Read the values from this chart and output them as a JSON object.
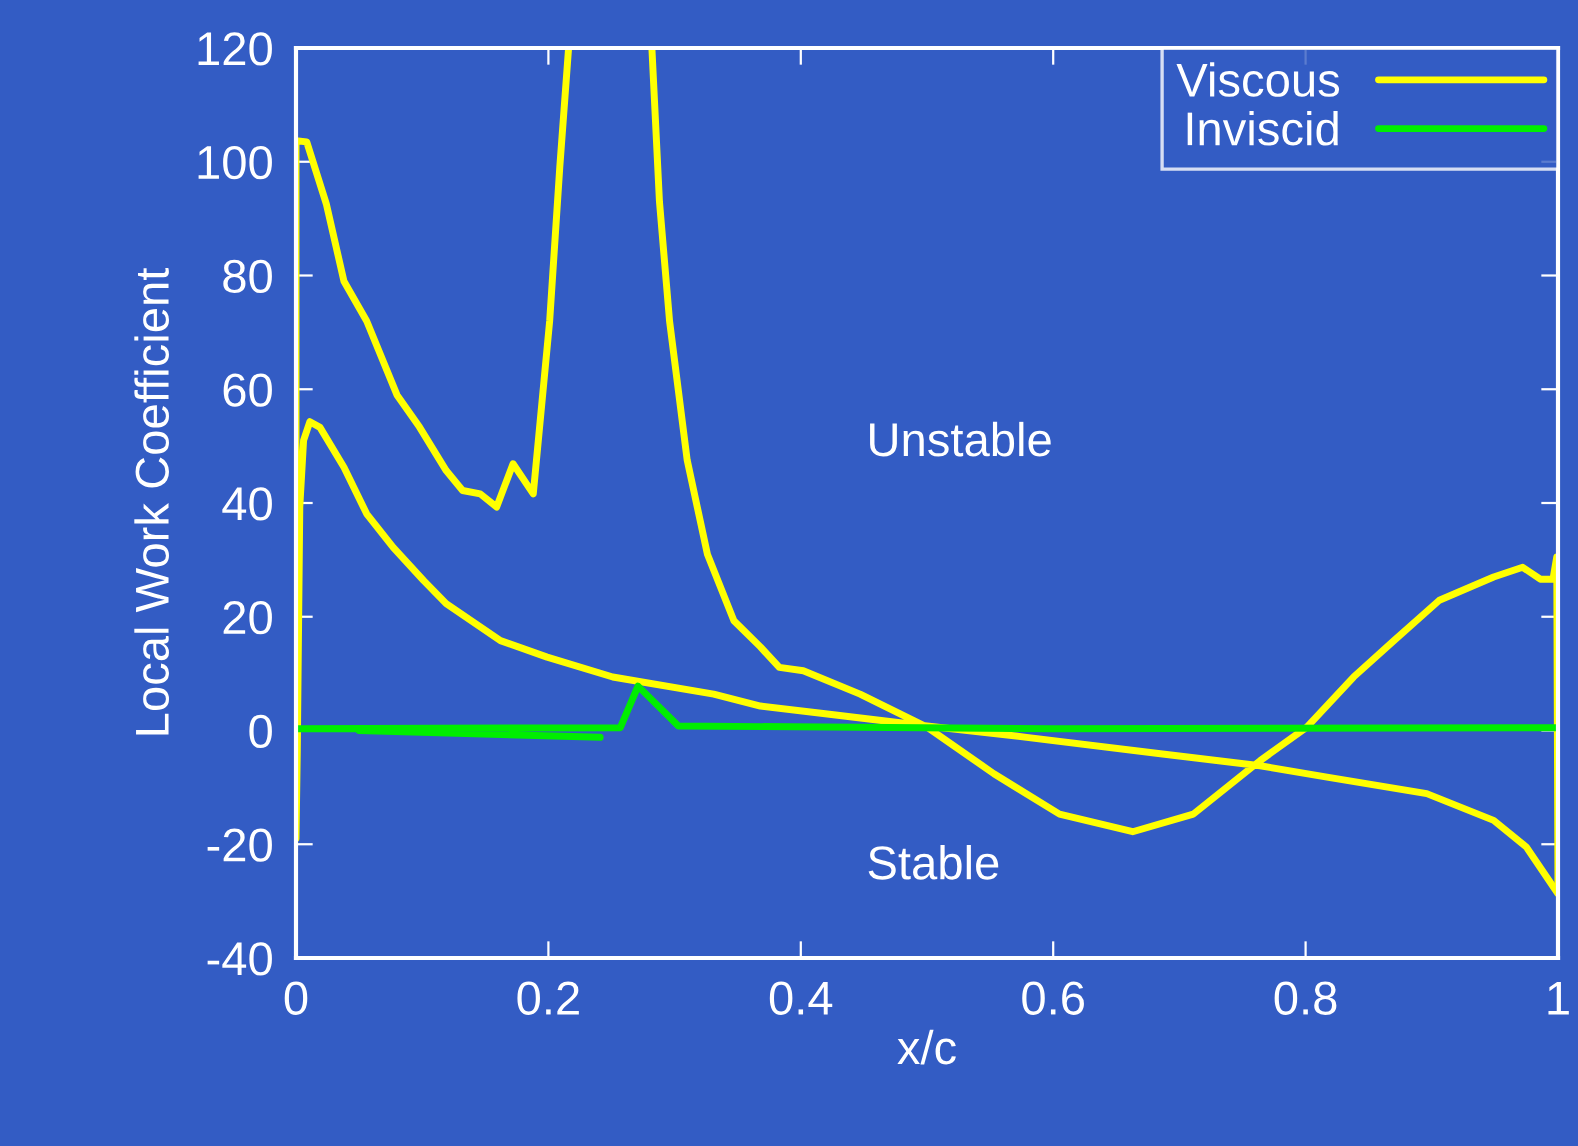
{
  "chart_data": {
    "type": "line",
    "xlabel": "x/c",
    "ylabel": "Local Work Coefficient",
    "xlim": [
      0,
      1
    ],
    "ylim": [
      -40,
      120
    ],
    "xticks": [
      0,
      0.2,
      0.4,
      0.6,
      0.8,
      1
    ],
    "yticks": [
      -40,
      -20,
      0,
      20,
      40,
      60,
      80,
      100,
      120
    ],
    "grid": false,
    "legend": "top right",
    "annotations": [
      "Unstable",
      "Stable"
    ],
    "series": [
      {
        "name": "Viscous",
        "color": "#ffff00",
        "x": [
          0,
          0,
          0.0085,
          0.024,
          0.038,
          0.056,
          0.08,
          0.098,
          0.119,
          0.132,
          0.146,
          0.159,
          0.172,
          0.188,
          0.201,
          0.209,
          0.216,
          0.25,
          0.282,
          0.288,
          0.296,
          0.31,
          0.326,
          0.347,
          0.368,
          0.383,
          0.402,
          0.447,
          0.5,
          0.553,
          0.605,
          0.663,
          0.711,
          0.764,
          0.801,
          0.838,
          0.87,
          0.906,
          0.949,
          0.972,
          0.986,
          0.996,
          0.999,
          1,
          0.975,
          0.949,
          0.896,
          0.817,
          0.764,
          0.685,
          0.579,
          0.5,
          0.421,
          0.368,
          0.331,
          0.251,
          0.199,
          0.162,
          0.119,
          0.101,
          0.077,
          0.056,
          0.038,
          0.019,
          0.011,
          0.006,
          0.003,
          0.001,
          0
        ],
        "values": [
          -19,
          103.7,
          103.5,
          92.6,
          79,
          72,
          59,
          53.3,
          45.7,
          42.2,
          41.6,
          39.3,
          46.9,
          41.6,
          72,
          99,
          120,
          null,
          120,
          93,
          72,
          47.5,
          31,
          19.3,
          14.7,
          11.1,
          10.5,
          6.4,
          0.6,
          -7.6,
          -14.7,
          -17.8,
          -14.7,
          -5.3,
          0.6,
          9.4,
          15.8,
          22.9,
          27,
          28.7,
          26.6,
          26.6,
          30.5,
          -28.7,
          -20.5,
          -15.8,
          -11.1,
          -8.2,
          -6.2,
          -4.1,
          -1.2,
          0.8,
          2.9,
          4.3,
          6.4,
          9.4,
          12.9,
          15.8,
          22.3,
          26.4,
          32.2,
          38.1,
          46.3,
          53.3,
          54.3,
          51,
          39.3,
          -4,
          -19
        ]
      },
      {
        "name": "Inviscid",
        "color": "#00ee00",
        "x": [
          0,
          0.257,
          0.271,
          0.303,
          0.6,
          1,
          0.5,
          0.05,
          0.241
        ],
        "values": [
          0.3,
          0.5,
          7.8,
          0.8,
          0.3,
          0.5,
          null,
          0,
          -1.2
        ]
      }
    ]
  }
}
